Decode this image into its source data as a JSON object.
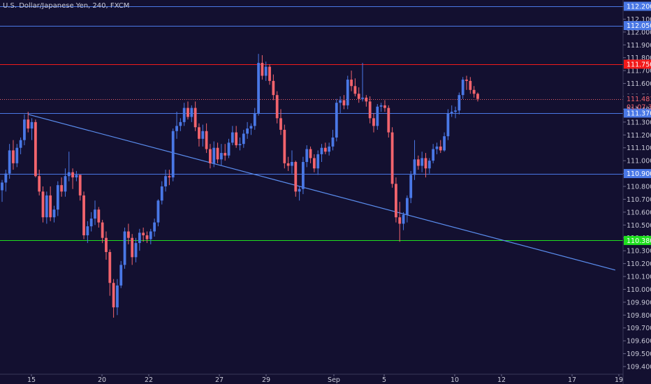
{
  "symbol_title": "U.S. Dollar/Japanese Yen, 240, FXCM",
  "colors": {
    "background": "#131030",
    "up": "#4a78e6",
    "down": "#f2646d",
    "axis_text": "#c8c8d6",
    "blue_level": "#4a78e6",
    "red_level": "#f21a1a",
    "green_level": "#1fdf1f",
    "trend": "#5b8ef0"
  },
  "chart_data": {
    "type": "candlestick",
    "title": "U.S. Dollar/Japanese Yen, 240, FXCM",
    "ylim": [
      109.35,
      112.25
    ],
    "x_ticks": [
      "15",
      "20",
      "22",
      "27",
      "29",
      "Sep",
      "5",
      "10",
      "12",
      "17",
      "19"
    ],
    "y_ticks": [
      "112.200",
      "112.100",
      "112.000",
      "111.900",
      "111.800",
      "111.700",
      "111.600",
      "111.500",
      "111.400",
      "111.300",
      "111.200",
      "111.100",
      "111.000",
      "110.900",
      "110.800",
      "110.700",
      "110.600",
      "110.500",
      "110.400",
      "110.300",
      "110.200",
      "110.100",
      "110.000",
      "109.900",
      "109.800",
      "109.700",
      "109.600",
      "109.500",
      "109.400"
    ],
    "levels": [
      {
        "label": "112.200",
        "value": 112.2,
        "color": "#4a78e6",
        "style": "solid"
      },
      {
        "label": "112.050",
        "value": 112.05,
        "color": "#4a78e6",
        "style": "solid"
      },
      {
        "label": "111.750",
        "value": 111.75,
        "color": "#f21a1a",
        "style": "solid"
      },
      {
        "label": "111.481",
        "value": 111.481,
        "color": "#f2646d",
        "style": "dotted"
      },
      {
        "label": "111.370",
        "value": 111.37,
        "color": "#4a78e6",
        "style": "solid"
      },
      {
        "label": "110.900",
        "value": 110.9,
        "color": "#4a78e6",
        "style": "solid"
      },
      {
        "label": "110.380",
        "value": 110.38,
        "color": "#1fdf1f",
        "style": "solid"
      }
    ],
    "countdown": "01:07:30",
    "trendline": {
      "from_index": 7,
      "from_value": 111.36,
      "to_index": 165,
      "to_value": 110.15
    },
    "candles": [
      [
        110.77,
        110.85,
        110.68,
        110.83
      ],
      [
        110.83,
        110.93,
        110.76,
        110.9
      ],
      [
        110.9,
        111.13,
        110.86,
        111.08
      ],
      [
        111.08,
        111.16,
        110.93,
        110.98
      ],
      [
        110.98,
        111.13,
        110.95,
        111.1
      ],
      [
        111.1,
        111.18,
        111.05,
        111.16
      ],
      [
        111.16,
        111.36,
        111.12,
        111.32
      ],
      [
        111.32,
        111.38,
        111.22,
        111.25
      ],
      [
        111.25,
        111.33,
        111.16,
        111.3
      ],
      [
        111.3,
        111.32,
        110.87,
        110.88
      ],
      [
        110.88,
        110.93,
        110.73,
        110.76
      ],
      [
        110.76,
        110.8,
        110.52,
        110.56
      ],
      [
        110.56,
        110.76,
        110.51,
        110.73
      ],
      [
        110.73,
        110.8,
        110.53,
        110.56
      ],
      [
        110.56,
        110.65,
        110.52,
        110.62
      ],
      [
        110.62,
        110.84,
        110.57,
        110.81
      ],
      [
        110.81,
        110.87,
        110.72,
        110.76
      ],
      [
        110.76,
        110.94,
        110.72,
        110.88
      ],
      [
        110.88,
        111.07,
        110.84,
        110.91
      ],
      [
        110.91,
        110.94,
        110.78,
        110.87
      ],
      [
        110.87,
        110.92,
        110.84,
        110.89
      ],
      [
        110.89,
        110.89,
        110.69,
        110.73
      ],
      [
        110.73,
        110.76,
        110.39,
        110.42
      ],
      [
        110.42,
        110.53,
        110.36,
        110.49
      ],
      [
        110.49,
        110.6,
        110.45,
        110.55
      ],
      [
        110.55,
        110.69,
        110.5,
        110.62
      ],
      [
        110.62,
        110.64,
        110.48,
        110.52
      ],
      [
        110.52,
        110.54,
        110.36,
        110.4
      ],
      [
        110.4,
        110.45,
        110.23,
        110.29
      ],
      [
        110.29,
        110.31,
        109.95,
        110.05
      ],
      [
        110.05,
        110.08,
        109.78,
        109.86
      ],
      [
        109.86,
        110.08,
        109.8,
        110.03
      ],
      [
        110.03,
        110.22,
        110.01,
        110.19
      ],
      [
        110.19,
        110.48,
        110.16,
        110.45
      ],
      [
        110.45,
        110.51,
        110.35,
        110.4
      ],
      [
        110.4,
        110.43,
        110.19,
        110.25
      ],
      [
        110.25,
        110.4,
        110.21,
        110.36
      ],
      [
        110.36,
        110.47,
        110.3,
        110.44
      ],
      [
        110.44,
        110.48,
        110.37,
        110.42
      ],
      [
        110.42,
        110.45,
        110.36,
        110.39
      ],
      [
        110.39,
        110.47,
        110.35,
        110.45
      ],
      [
        110.45,
        110.55,
        110.41,
        110.52
      ],
      [
        110.52,
        110.7,
        110.49,
        110.69
      ],
      [
        110.69,
        110.84,
        110.66,
        110.8
      ],
      [
        110.8,
        110.93,
        110.76,
        110.88
      ],
      [
        110.88,
        110.93,
        110.81,
        110.87
      ],
      [
        110.87,
        111.25,
        110.84,
        111.23
      ],
      [
        111.23,
        111.38,
        111.17,
        111.27
      ],
      [
        111.27,
        111.33,
        111.23,
        111.3
      ],
      [
        111.3,
        111.45,
        111.27,
        111.41
      ],
      [
        111.41,
        111.46,
        111.32,
        111.34
      ],
      [
        111.34,
        111.43,
        111.3,
        111.41
      ],
      [
        111.41,
        111.46,
        111.23,
        111.26
      ],
      [
        111.26,
        111.29,
        111.11,
        111.17
      ],
      [
        111.17,
        111.28,
        111.11,
        111.23
      ],
      [
        111.23,
        111.29,
        111.06,
        111.09
      ],
      [
        111.09,
        111.13,
        110.94,
        110.98
      ],
      [
        110.98,
        111.15,
        110.95,
        111.1
      ],
      [
        111.1,
        111.14,
        110.98,
        111.01
      ],
      [
        111.01,
        111.13,
        110.96,
        111.06
      ],
      [
        111.06,
        111.13,
        111.0,
        111.04
      ],
      [
        111.04,
        111.17,
        111.02,
        111.14
      ],
      [
        111.14,
        111.27,
        111.12,
        111.22
      ],
      [
        111.22,
        111.27,
        111.1,
        111.12
      ],
      [
        111.12,
        111.18,
        111.08,
        111.13
      ],
      [
        111.13,
        111.24,
        111.1,
        111.21
      ],
      [
        111.21,
        111.3,
        111.17,
        111.25
      ],
      [
        111.25,
        111.29,
        111.2,
        111.27
      ],
      [
        111.27,
        111.41,
        111.24,
        111.37
      ],
      [
        111.37,
        111.83,
        111.35,
        111.76
      ],
      [
        111.76,
        111.82,
        111.63,
        111.66
      ],
      [
        111.66,
        111.77,
        111.62,
        111.73
      ],
      [
        111.73,
        111.75,
        111.59,
        111.62
      ],
      [
        111.62,
        111.67,
        111.47,
        111.51
      ],
      [
        111.51,
        111.54,
        111.29,
        111.33
      ],
      [
        111.33,
        111.4,
        111.2,
        111.24
      ],
      [
        111.24,
        111.28,
        110.94,
        110.98
      ],
      [
        110.98,
        111.03,
        110.92,
        110.96
      ],
      [
        110.96,
        111.08,
        110.9,
        110.99
      ],
      [
        110.99,
        111.0,
        110.72,
        110.76
      ],
      [
        110.76,
        110.8,
        110.69,
        110.78
      ],
      [
        110.78,
        111.03,
        110.74,
        110.99
      ],
      [
        110.99,
        111.12,
        110.95,
        111.09
      ],
      [
        111.09,
        111.11,
        110.98,
        111.02
      ],
      [
        111.02,
        111.05,
        110.91,
        110.94
      ],
      [
        110.94,
        111.08,
        110.89,
        111.05
      ],
      [
        111.05,
        111.13,
        110.99,
        111.1
      ],
      [
        111.1,
        111.14,
        111.05,
        111.07
      ],
      [
        111.07,
        111.14,
        111.04,
        111.11
      ],
      [
        111.11,
        111.24,
        111.08,
        111.18
      ],
      [
        111.18,
        111.48,
        111.15,
        111.45
      ],
      [
        111.45,
        111.5,
        111.37,
        111.47
      ],
      [
        111.47,
        111.51,
        111.4,
        111.43
      ],
      [
        111.43,
        111.66,
        111.4,
        111.63
      ],
      [
        111.63,
        111.7,
        111.54,
        111.58
      ],
      [
        111.58,
        111.64,
        111.5,
        111.52
      ],
      [
        111.52,
        111.57,
        111.45,
        111.48
      ],
      [
        111.48,
        111.76,
        111.46,
        111.49
      ],
      [
        111.49,
        111.51,
        111.42,
        111.46
      ],
      [
        111.46,
        111.5,
        111.29,
        111.33
      ],
      [
        111.33,
        111.37,
        111.22,
        111.27
      ],
      [
        111.27,
        111.44,
        111.24,
        111.42
      ],
      [
        111.42,
        111.45,
        111.38,
        111.43
      ],
      [
        111.43,
        111.47,
        111.38,
        111.41
      ],
      [
        111.41,
        111.43,
        111.18,
        111.22
      ],
      [
        111.22,
        111.26,
        110.79,
        110.82
      ],
      [
        110.82,
        110.87,
        110.52,
        110.56
      ],
      [
        110.56,
        110.68,
        110.37,
        110.51
      ],
      [
        110.51,
        110.6,
        110.46,
        110.58
      ],
      [
        110.58,
        110.73,
        110.52,
        110.71
      ],
      [
        110.71,
        110.92,
        110.67,
        110.89
      ],
      [
        110.89,
        111.16,
        110.85,
        111.01
      ],
      [
        111.01,
        111.04,
        110.93,
        110.96
      ],
      [
        110.96,
        111.07,
        110.91,
        111.02
      ],
      [
        111.02,
        111.06,
        110.87,
        110.94
      ],
      [
        110.94,
        111.02,
        110.9,
        111.0
      ],
      [
        111.0,
        111.13,
        110.98,
        111.09
      ],
      [
        111.09,
        111.14,
        111.05,
        111.11
      ],
      [
        111.11,
        111.16,
        111.06,
        111.08
      ],
      [
        111.08,
        111.22,
        111.07,
        111.19
      ],
      [
        111.19,
        111.4,
        111.16,
        111.37
      ],
      [
        111.37,
        111.43,
        111.34,
        111.38
      ],
      [
        111.38,
        111.42,
        111.33,
        111.39
      ],
      [
        111.39,
        111.53,
        111.36,
        111.51
      ],
      [
        111.51,
        111.65,
        111.48,
        111.63
      ],
      [
        111.63,
        111.66,
        111.55,
        111.62
      ],
      [
        111.62,
        111.65,
        111.52,
        111.55
      ],
      [
        111.55,
        111.58,
        111.49,
        111.52
      ],
      [
        111.52,
        111.53,
        111.46,
        111.48
      ]
    ]
  }
}
